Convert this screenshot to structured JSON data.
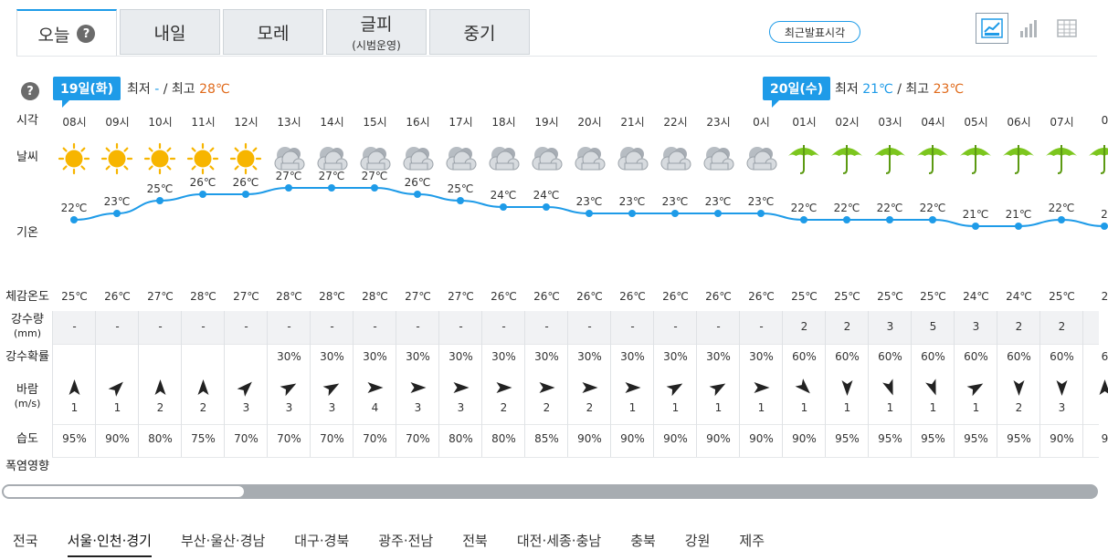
{
  "tabs": [
    {
      "label": "오늘",
      "sub": ""
    },
    {
      "label": "내일",
      "sub": ""
    },
    {
      "label": "모레",
      "sub": ""
    },
    {
      "label": "글피",
      "sub": "(시범운영)"
    },
    {
      "label": "중기",
      "sub": ""
    }
  ],
  "help_label": "?",
  "latest_button": "최근발표시각",
  "view_buttons": [
    "line-chart-icon",
    "bar-chart-icon",
    "table-icon"
  ],
  "day1": {
    "badge": "19일(화)",
    "min_label": "최저",
    "min": "-",
    "sep": "/",
    "max_label": "최고",
    "max": "28℃"
  },
  "day2": {
    "badge": "20일(수)",
    "min_label": "최저",
    "min": "21℃",
    "sep": "/",
    "max_label": "최고",
    "max": "23℃"
  },
  "row_labels": {
    "time": "시각",
    "weather": "날씨",
    "temp": "기온",
    "feel": "체감온도",
    "rain_amount": "강수량",
    "rain_unit": "(mm)",
    "rain_prob": "강수확률",
    "wind": "바람",
    "wind_unit": "(m/s)",
    "humidity": "습도",
    "heat": "폭염영향"
  },
  "hours": [
    "08시",
    "09시",
    "10시",
    "11시",
    "12시",
    "13시",
    "14시",
    "15시",
    "16시",
    "17시",
    "18시",
    "19시",
    "20시",
    "21시",
    "22시",
    "23시",
    "0시",
    "01시",
    "02시",
    "03시",
    "04시",
    "05시",
    "06시",
    "07시",
    "0"
  ],
  "weather": [
    "sun",
    "sun",
    "sun",
    "sun",
    "sun",
    "cloud",
    "cloud",
    "cloud",
    "cloud",
    "cloud",
    "cloud",
    "cloud",
    "cloud",
    "cloud",
    "cloud",
    "cloud",
    "cloud",
    "umbrella",
    "umbrella",
    "umbrella",
    "umbrella",
    "umbrella",
    "umbrella",
    "umbrella",
    "umbrella"
  ],
  "temps": [
    "22℃",
    "23℃",
    "25℃",
    "26℃",
    "26℃",
    "27℃",
    "27℃",
    "27℃",
    "26℃",
    "25℃",
    "24℃",
    "24℃",
    "23℃",
    "23℃",
    "23℃",
    "23℃",
    "23℃",
    "22℃",
    "22℃",
    "22℃",
    "22℃",
    "21℃",
    "21℃",
    "22℃",
    "2"
  ],
  "temp_values": [
    22,
    23,
    25,
    26,
    26,
    27,
    27,
    27,
    26,
    25,
    24,
    24,
    23,
    23,
    23,
    23,
    23,
    22,
    22,
    22,
    22,
    21,
    21,
    22,
    21
  ],
  "feels": [
    "25℃",
    "26℃",
    "27℃",
    "28℃",
    "27℃",
    "28℃",
    "28℃",
    "28℃",
    "27℃",
    "27℃",
    "26℃",
    "26℃",
    "26℃",
    "26℃",
    "26℃",
    "26℃",
    "26℃",
    "25℃",
    "25℃",
    "25℃",
    "25℃",
    "24℃",
    "24℃",
    "25℃",
    "2"
  ],
  "rain_amount": [
    "-",
    "-",
    "-",
    "-",
    "-",
    "-",
    "-",
    "-",
    "-",
    "-",
    "-",
    "-",
    "-",
    "-",
    "-",
    "-",
    "-",
    "2",
    "2",
    "3",
    "5",
    "3",
    "2",
    "2",
    ""
  ],
  "rain_prob": [
    "",
    "",
    "",
    "",
    "",
    "30%",
    "30%",
    "30%",
    "30%",
    "30%",
    "30%",
    "30%",
    "30%",
    "30%",
    "30%",
    "30%",
    "30%",
    "60%",
    "60%",
    "60%",
    "60%",
    "60%",
    "60%",
    "60%",
    "6"
  ],
  "wind_speed": [
    "1",
    "1",
    "2",
    "2",
    "3",
    "3",
    "3",
    "4",
    "3",
    "3",
    "2",
    "2",
    "2",
    "1",
    "1",
    "1",
    "1",
    "1",
    "1",
    "1",
    "1",
    "1",
    "2",
    "3",
    ""
  ],
  "wind_dir_deg": [
    0,
    45,
    0,
    0,
    45,
    60,
    60,
    90,
    90,
    90,
    90,
    90,
    90,
    90,
    60,
    60,
    90,
    135,
    180,
    160,
    160,
    60,
    180,
    180,
    0
  ],
  "humidity": [
    "95%",
    "90%",
    "80%",
    "75%",
    "70%",
    "70%",
    "70%",
    "70%",
    "70%",
    "80%",
    "80%",
    "85%",
    "90%",
    "90%",
    "90%",
    "90%",
    "90%",
    "90%",
    "95%",
    "95%",
    "95%",
    "95%",
    "95%",
    "90%",
    "9"
  ],
  "regions": [
    "전국",
    "서울·인천·경기",
    "부산·울산·경남",
    "대구·경북",
    "광주·전남",
    "전북",
    "대전·세종·충남",
    "충북",
    "강원",
    "제주"
  ],
  "active_region": "서울·인천·경기",
  "colors": {
    "accent": "#1e9be8",
    "hot": "#e06a1b",
    "sun": "#f7b500",
    "umbrella": "#7cc61e",
    "cloud": "#9aa1a8"
  }
}
